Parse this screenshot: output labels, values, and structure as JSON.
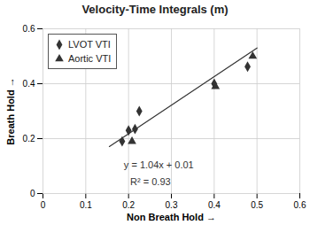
{
  "chart_data": {
    "type": "scatter",
    "title": "Velocity-Time Integrals (m)",
    "xlabel": "Non Breath Hold",
    "ylabel": "Breath Hold",
    "xlim": [
      0,
      0.6
    ],
    "ylim": [
      0,
      0.6
    ],
    "xticks": [
      0,
      0.1,
      0.2,
      0.3,
      0.4,
      0.5,
      0.6
    ],
    "yticks": [
      0,
      0.2,
      0.4,
      0.6
    ],
    "grid": true,
    "legend": "upper left",
    "series": [
      {
        "name": "LVOT VTI",
        "color": "#333333",
        "marker": "diamond",
        "x": [
          0.185,
          0.2,
          0.215,
          0.225,
          0.4,
          0.478
        ],
        "values": [
          0.19,
          0.23,
          0.235,
          0.3,
          0.4,
          0.462
        ]
      },
      {
        "name": "Aortic VTI",
        "color": "#333333",
        "marker": "triangle",
        "x": [
          0.208,
          0.403,
          0.49
        ],
        "values": [
          0.19,
          0.39,
          0.5
        ]
      },
      {
        "type": "line",
        "color": "#333333",
        "x": [
          0.155,
          0.5
        ],
        "values": [
          0.1712,
          0.53
        ]
      }
    ],
    "annotations": [
      "y = 1.04x + 0.01",
      "R² = 0.93"
    ]
  }
}
